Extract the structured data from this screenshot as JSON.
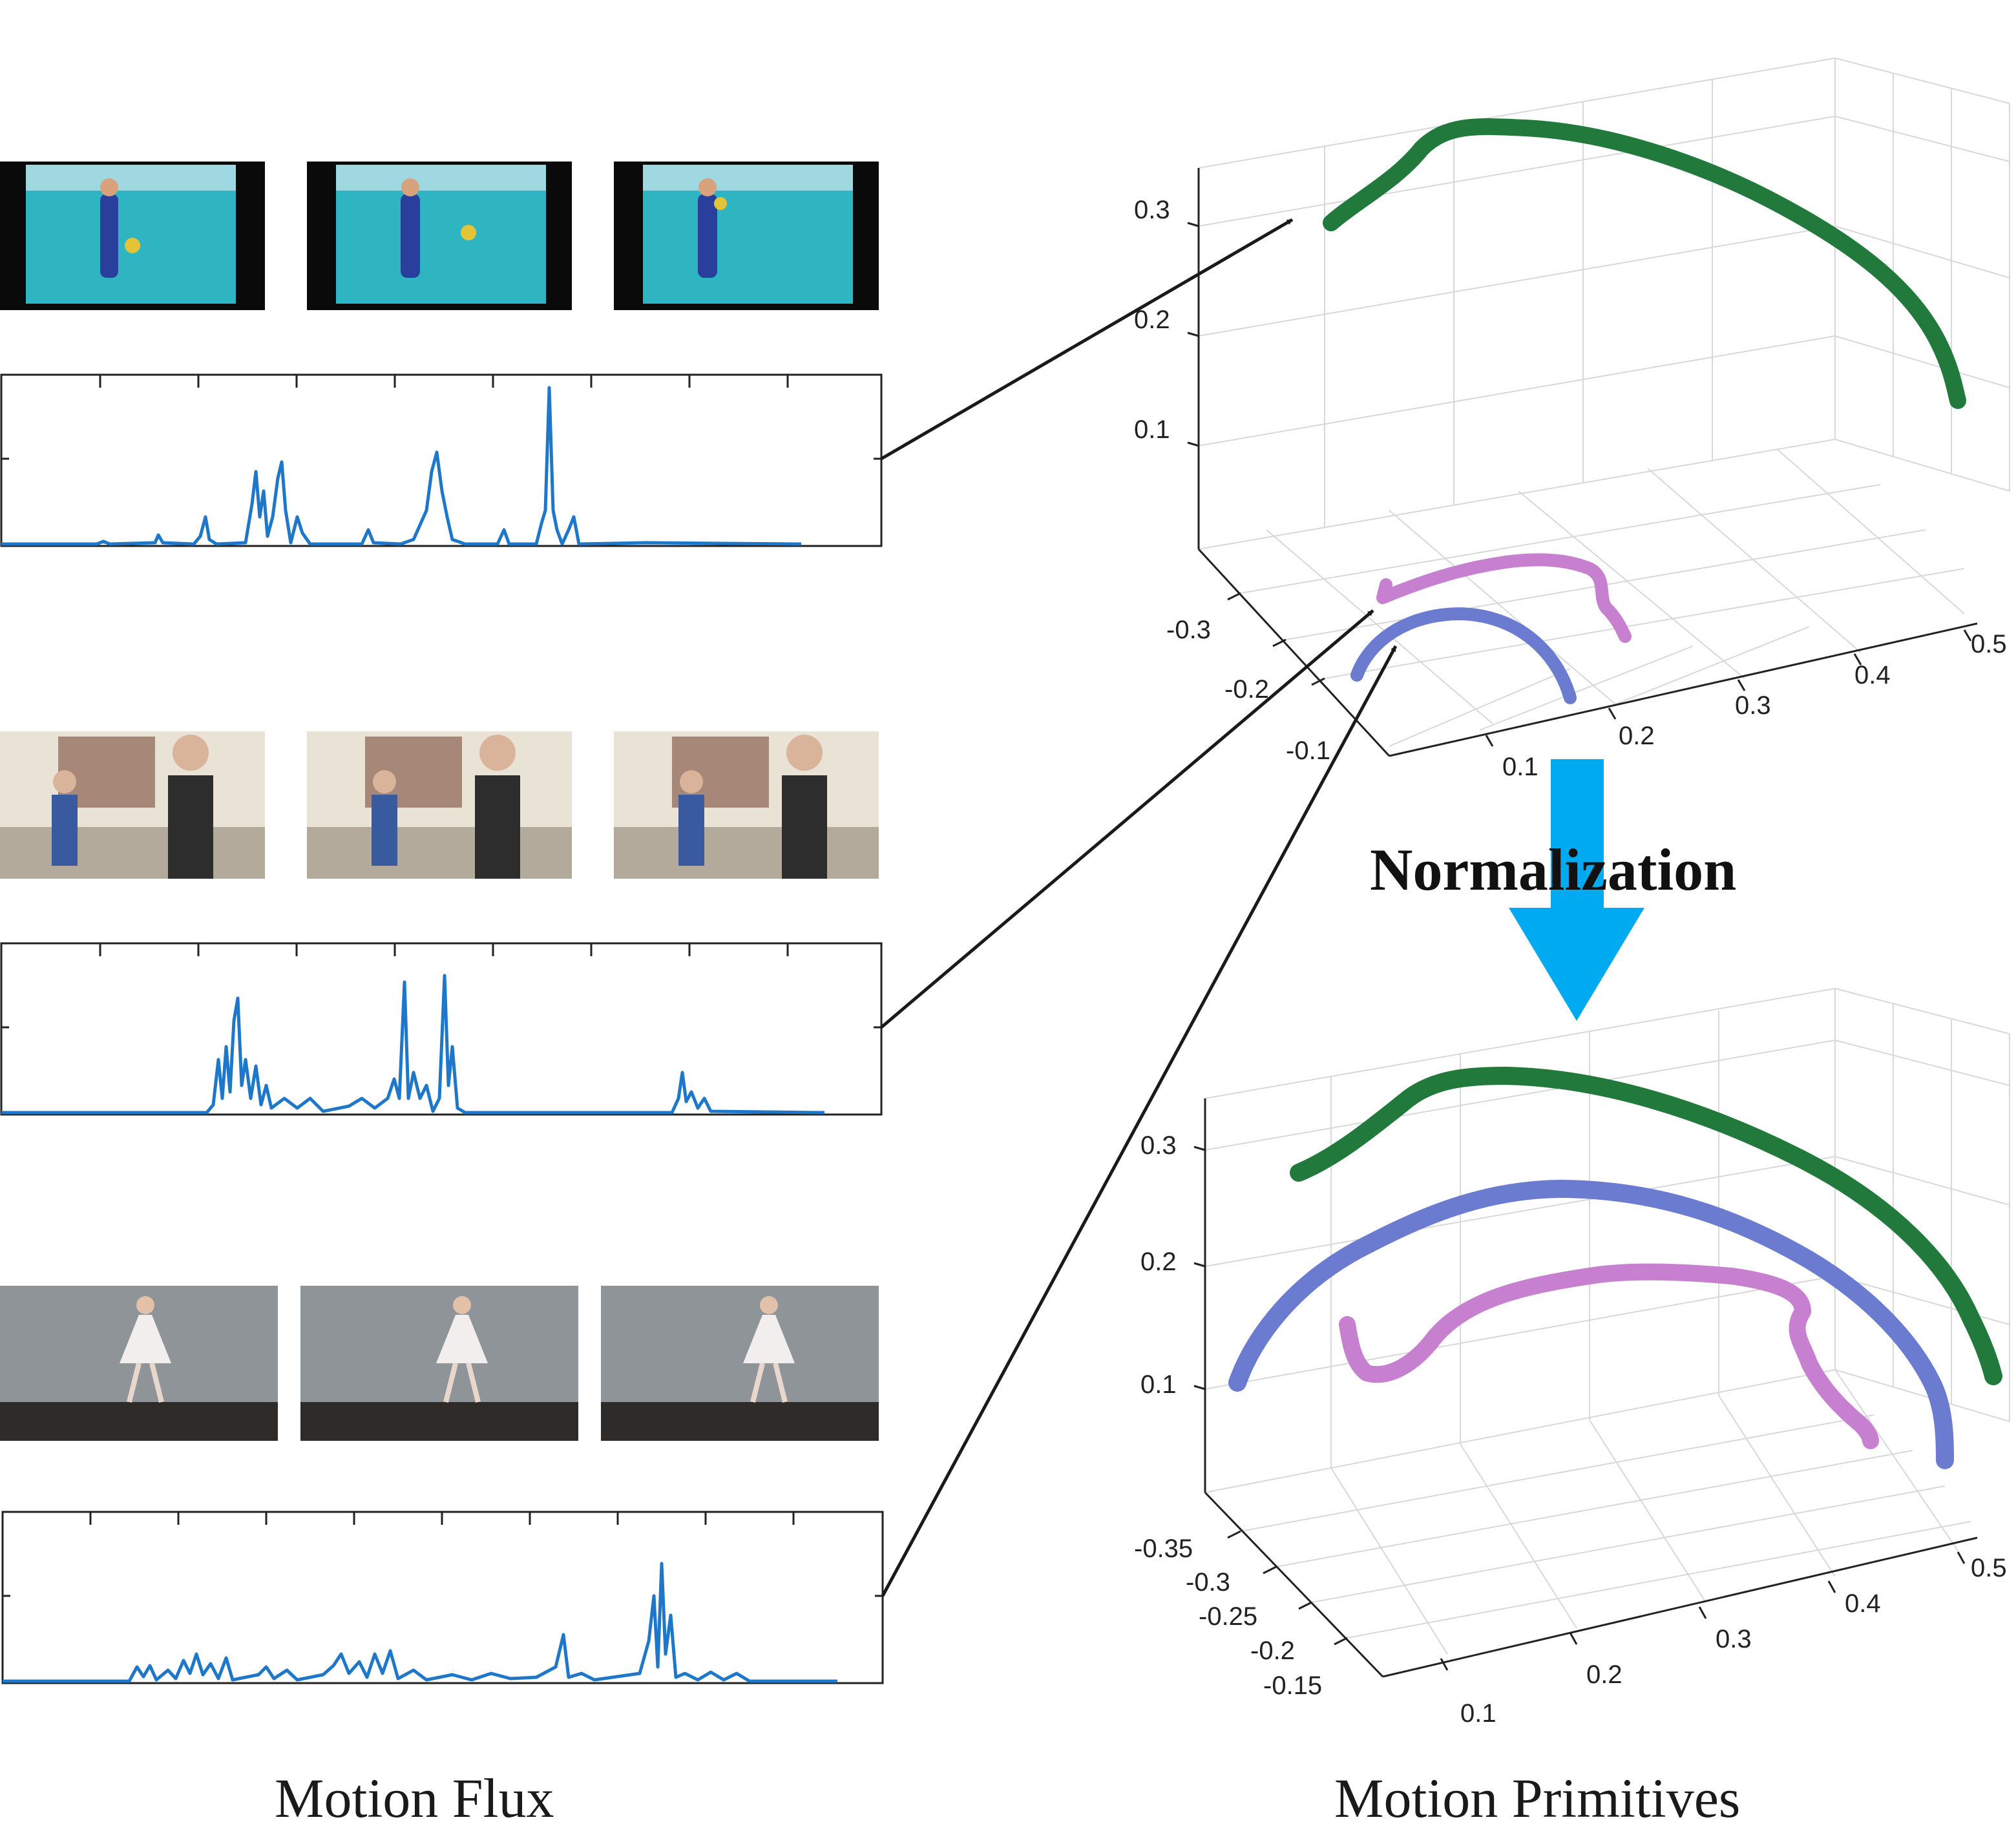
{
  "captions": {
    "left": "Motion Flux",
    "right": "Motion Primitives",
    "normalization": "Normalization"
  },
  "colors": {
    "flux_line": "#1f77c9",
    "arrow": "#1a1a1a",
    "norm_arrow": "#00aaf0",
    "green": "#217a3c",
    "blue": "#6a7bd0",
    "pink": "#c77fd0",
    "grid": "#d8d8d8"
  },
  "thumbnails": {
    "volleyball": {
      "court": "#2fb5c2",
      "border": "#0a0a0a"
    },
    "kids": {
      "wall": "#e9e3d5",
      "floor": "#b3aa9b"
    },
    "ballet": {
      "wall": "#8f9498",
      "floor": "#2f2b28"
    }
  },
  "top_plot": {
    "z_ticks": [
      "0.3",
      "0.2",
      "0.1"
    ],
    "y_ticks": [
      "-0.3",
      "-0.2",
      "-0.1"
    ],
    "x_ticks": [
      "0.1",
      "0.2",
      "0.3",
      "0.4",
      "0.5"
    ]
  },
  "bottom_plot": {
    "z_ticks": [
      "0.3",
      "0.2",
      "0.1"
    ],
    "y_ticks": [
      "-0.35",
      "-0.3",
      "-0.25",
      "-0.2",
      "-0.15"
    ],
    "x_ticks": [
      "0.1",
      "0.2",
      "0.3",
      "0.4",
      "0.5"
    ]
  }
}
